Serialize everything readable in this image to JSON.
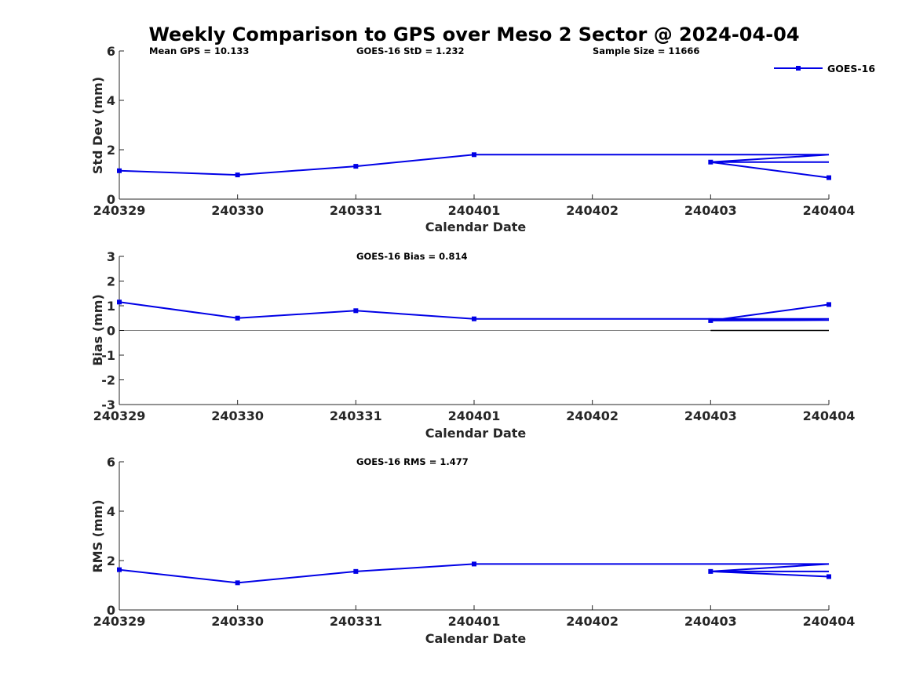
{
  "title": "Weekly Comparison to GPS over Meso 2 Sector @ 2024-04-04",
  "legend": {
    "label": "GOES-16",
    "color": "#0000e6"
  },
  "colors": {
    "series": "#0000e6",
    "axis": "#262626",
    "zero_line": "#000000"
  },
  "chart_data": [
    {
      "type": "line",
      "ylabel": "Std Dev (mm)",
      "xlabel": "Calendar Date",
      "ylim": [
        0,
        6
      ],
      "yticks": [
        "0",
        "2",
        "4",
        "6"
      ],
      "categories": [
        "240329",
        "240330",
        "240331",
        "240401",
        "240402",
        "240403",
        "240404"
      ],
      "annotations": [
        "Mean GPS = 10.133",
        "GOES-16 StD = 1.232",
        "Sample Size = 11666"
      ],
      "series": [
        {
          "name": "GOES-16",
          "points": [
            [
              0,
              1.15
            ],
            [
              1,
              0.98
            ],
            [
              2,
              1.33
            ],
            [
              3,
              1.8
            ],
            [
              4,
              1.8
            ],
            [
              5,
              1.8
            ],
            [
              6,
              1.8
            ],
            [
              5,
              1.5
            ],
            [
              6,
              1.5
            ],
            [
              5,
              1.5
            ],
            [
              6,
              0.87
            ]
          ],
          "markers": [
            [
              0,
              1.15
            ],
            [
              1,
              0.98
            ],
            [
              2,
              1.33
            ],
            [
              3,
              1.8
            ],
            [
              5,
              1.5
            ],
            [
              6,
              0.87
            ]
          ]
        }
      ],
      "zero_line": false
    },
    {
      "type": "line",
      "ylabel": "Bias (mm)",
      "xlabel": "Calendar Date",
      "ylim": [
        -3,
        3
      ],
      "yticks": [
        "-3",
        "-2",
        "-1",
        "0",
        "1",
        "2",
        "3"
      ],
      "categories": [
        "240329",
        "240330",
        "240331",
        "240401",
        "240402",
        "240403",
        "240404"
      ],
      "annotations": [
        "GOES-16 Bias  = 0.814"
      ],
      "series": [
        {
          "name": "GOES-16",
          "points": [
            [
              0,
              1.15
            ],
            [
              1,
              0.5
            ],
            [
              2,
              0.8
            ],
            [
              3,
              0.47
            ],
            [
              4,
              0.47
            ],
            [
              5,
              0.47
            ],
            [
              6,
              0.47
            ],
            [
              5,
              0.42
            ],
            [
              6,
              0.42
            ],
            [
              5,
              0.4
            ],
            [
              6,
              1.05
            ]
          ],
          "markers": [
            [
              0,
              1.15
            ],
            [
              1,
              0.5
            ],
            [
              2,
              0.8
            ],
            [
              3,
              0.47
            ],
            [
              5,
              0.4
            ],
            [
              6,
              1.05
            ]
          ]
        }
      ],
      "zero_line": true
    },
    {
      "type": "line",
      "ylabel": "RMS (mm)",
      "xlabel": "Calendar Date",
      "ylim": [
        0,
        6
      ],
      "yticks": [
        "0",
        "2",
        "4",
        "6"
      ],
      "categories": [
        "240329",
        "240330",
        "240331",
        "240401",
        "240402",
        "240403",
        "240404"
      ],
      "annotations": [
        "GOES-16 RMS = 1.477"
      ],
      "series": [
        {
          "name": "GOES-16",
          "points": [
            [
              0,
              1.63
            ],
            [
              1,
              1.1
            ],
            [
              2,
              1.56
            ],
            [
              3,
              1.86
            ],
            [
              4,
              1.86
            ],
            [
              5,
              1.86
            ],
            [
              6,
              1.86
            ],
            [
              5,
              1.56
            ],
            [
              6,
              1.56
            ],
            [
              5,
              1.56
            ],
            [
              6,
              1.35
            ]
          ],
          "markers": [
            [
              0,
              1.63
            ],
            [
              1,
              1.1
            ],
            [
              2,
              1.56
            ],
            [
              3,
              1.86
            ],
            [
              5,
              1.56
            ],
            [
              6,
              1.35
            ]
          ]
        }
      ],
      "zero_line": false
    }
  ]
}
